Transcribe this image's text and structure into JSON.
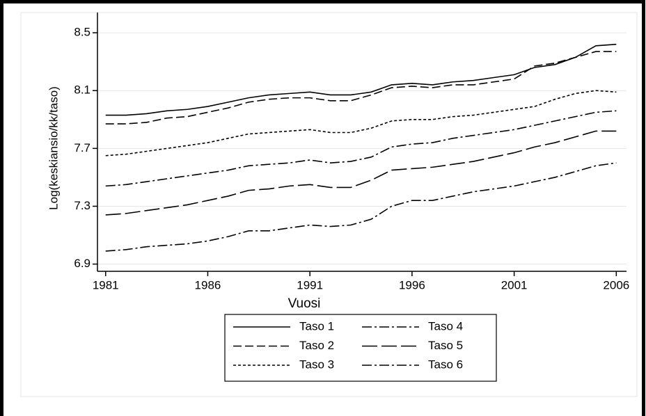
{
  "chart_data": {
    "type": "line",
    "x_label": "Vuosi",
    "y_label": "Log(keskiansio/kk/taso)",
    "x": [
      1981,
      1982,
      1983,
      1984,
      1985,
      1986,
      1987,
      1988,
      1989,
      1990,
      1991,
      1992,
      1993,
      1994,
      1995,
      1996,
      1997,
      1998,
      1999,
      2000,
      2001,
      2002,
      2003,
      2004,
      2005,
      2006
    ],
    "series": [
      {
        "name": "Taso 1",
        "color": "#000000",
        "dash": "solid",
        "values": [
          7.93,
          7.93,
          7.94,
          7.96,
          7.97,
          7.99,
          8.02,
          8.05,
          8.07,
          8.08,
          8.09,
          8.07,
          8.07,
          8.09,
          8.14,
          8.15,
          8.14,
          8.16,
          8.17,
          8.19,
          8.21,
          8.26,
          8.28,
          8.33,
          8.41,
          8.42
        ]
      },
      {
        "name": "Taso 2",
        "color": "#000000",
        "dash": "dash",
        "values": [
          7.87,
          7.87,
          7.88,
          7.91,
          7.92,
          7.95,
          7.98,
          8.02,
          8.04,
          8.05,
          8.05,
          8.03,
          8.03,
          8.07,
          8.12,
          8.13,
          8.12,
          8.14,
          8.14,
          8.16,
          8.18,
          8.27,
          8.29,
          8.33,
          8.37,
          8.37
        ]
      },
      {
        "name": "Taso 3",
        "color": "#000000",
        "dash": "dot",
        "values": [
          7.65,
          7.66,
          7.68,
          7.7,
          7.72,
          7.74,
          7.77,
          7.8,
          7.81,
          7.82,
          7.83,
          7.81,
          7.81,
          7.84,
          7.89,
          7.9,
          7.9,
          7.92,
          7.93,
          7.95,
          7.97,
          7.99,
          8.04,
          8.08,
          8.1,
          8.09
        ]
      },
      {
        "name": "Taso 4",
        "color": "#000000",
        "dash": "dashdot",
        "values": [
          7.44,
          7.45,
          7.47,
          7.49,
          7.51,
          7.53,
          7.55,
          7.58,
          7.59,
          7.6,
          7.62,
          7.6,
          7.61,
          7.64,
          7.71,
          7.73,
          7.74,
          7.77,
          7.79,
          7.81,
          7.83,
          7.86,
          7.89,
          7.92,
          7.95,
          7.96
        ]
      },
      {
        "name": "Taso 5",
        "color": "#000000",
        "dash": "longdash",
        "values": [
          7.24,
          7.25,
          7.27,
          7.29,
          7.31,
          7.34,
          7.37,
          7.41,
          7.42,
          7.44,
          7.45,
          7.43,
          7.43,
          7.48,
          7.55,
          7.56,
          7.57,
          7.59,
          7.61,
          7.64,
          7.67,
          7.71,
          7.74,
          7.78,
          7.82,
          7.82
        ]
      },
      {
        "name": "Taso 6",
        "color": "#000000",
        "dash": "dashdot",
        "values": [
          6.99,
          7.0,
          7.02,
          7.03,
          7.04,
          7.06,
          7.09,
          7.13,
          7.13,
          7.15,
          7.17,
          7.16,
          7.17,
          7.21,
          7.3,
          7.34,
          7.34,
          7.37,
          7.4,
          7.42,
          7.44,
          7.47,
          7.5,
          7.54,
          7.58,
          7.6
        ]
      }
    ],
    "xlim": [
      1980.6,
      2006.5
    ],
    "xticks": [
      1981,
      1986,
      1991,
      1996,
      2001,
      2006
    ],
    "ylim": [
      6.85,
      8.64
    ],
    "yticks": [
      {
        "value": 6.9,
        "label": "6.9"
      },
      {
        "value": 7.3,
        "label": "7.3"
      },
      {
        "value": 7.7,
        "label": "7.7"
      },
      {
        "value": 8.1,
        "label": "8.1"
      },
      {
        "value": 8.5,
        "label": "8.5"
      }
    ],
    "grid": true,
    "legend": "bottom"
  }
}
